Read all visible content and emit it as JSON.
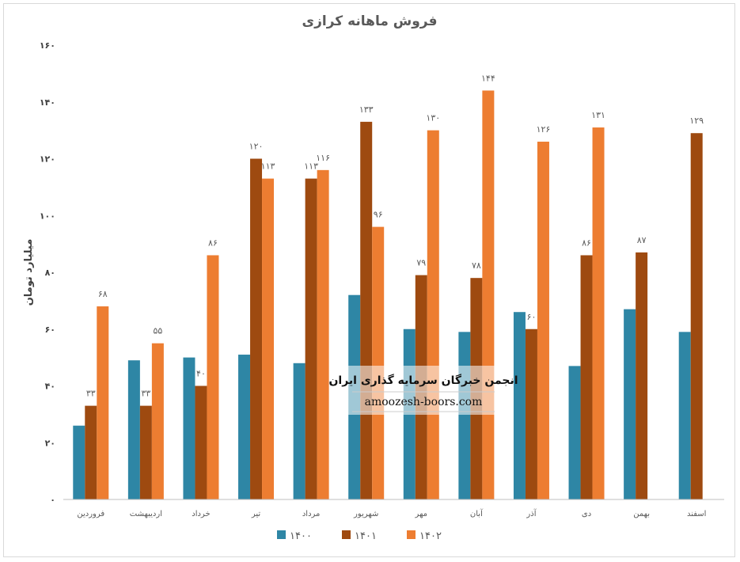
{
  "chart_data": {
    "type": "bar",
    "title": "فروش ماهانه کرازی",
    "ylabel": "میلیارد تومان",
    "xlabel": "",
    "ylim": [
      0,
      160
    ],
    "yticks": [
      0,
      20,
      40,
      60,
      80,
      100,
      120,
      140,
      160
    ],
    "ytick_labels": [
      "۰",
      "۲۰",
      "۴۰",
      "۶۰",
      "۸۰",
      "۱۰۰",
      "۱۲۰",
      "۱۴۰",
      "۱۶۰"
    ],
    "grid": false,
    "legend_position": "bottom",
    "categories": [
      "فروردین",
      "اردیبهشت",
      "خرداد",
      "تیر",
      "مرداد",
      "شهریور",
      "مهر",
      "آبان",
      "آذر",
      "دی",
      "بهمن",
      "اسفند"
    ],
    "series": [
      {
        "name": "۱۴۰۰",
        "color": "#2e86a5",
        "show_labels": false,
        "values": [
          26,
          49,
          50,
          51,
          48,
          72,
          60,
          59,
          66,
          47,
          67,
          59
        ]
      },
      {
        "name": "۱۴۰۱",
        "color": "#9e4a10",
        "show_labels": true,
        "values": [
          33,
          33,
          40,
          120,
          113,
          133,
          79,
          78,
          60,
          86,
          87,
          129
        ]
      },
      {
        "name": "۱۴۰۲",
        "color": "#ed7d31",
        "show_labels": true,
        "values": [
          68,
          55,
          86,
          113,
          116,
          96,
          130,
          144,
          126,
          131,
          null,
          null
        ]
      }
    ]
  },
  "watermark": {
    "line1": "انجمن خبرگان سرمایه گذاری ایران",
    "line2": "amoozesh-boors.com"
  }
}
